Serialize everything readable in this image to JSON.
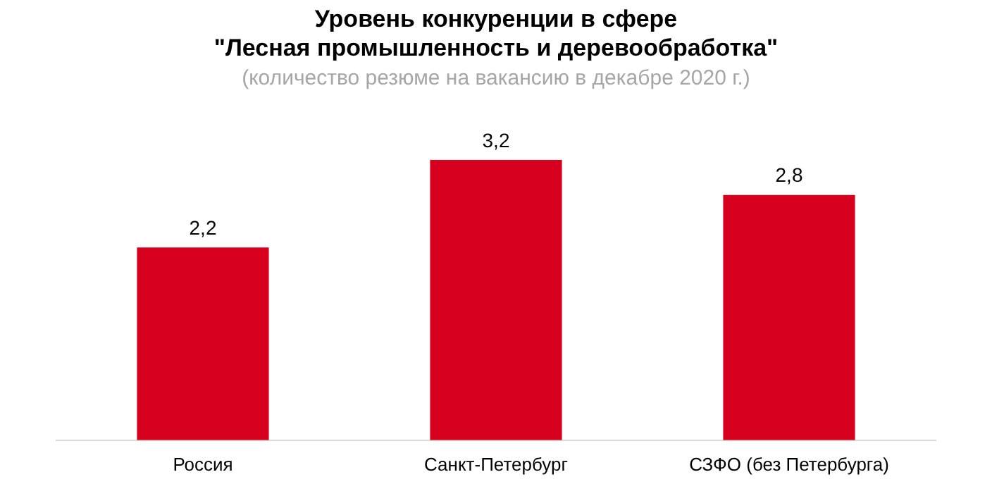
{
  "chart_data": {
    "type": "bar",
    "title": "Уровень конкуренции в сфере\n\"Лесная промышленность и деревообработка\"",
    "subtitle": "(количество резюме на вакансию в декабре 2020 г.)",
    "categories": [
      "Россия",
      "Санкт-Петербург",
      "СЗФО (без Петербурга)"
    ],
    "values": [
      2.2,
      3.2,
      2.8
    ],
    "value_labels": [
      "2,2",
      "3,2",
      "2,8"
    ],
    "color": "#d7001f",
    "tick_labels": "x",
    "grid": false,
    "legend": false
  }
}
